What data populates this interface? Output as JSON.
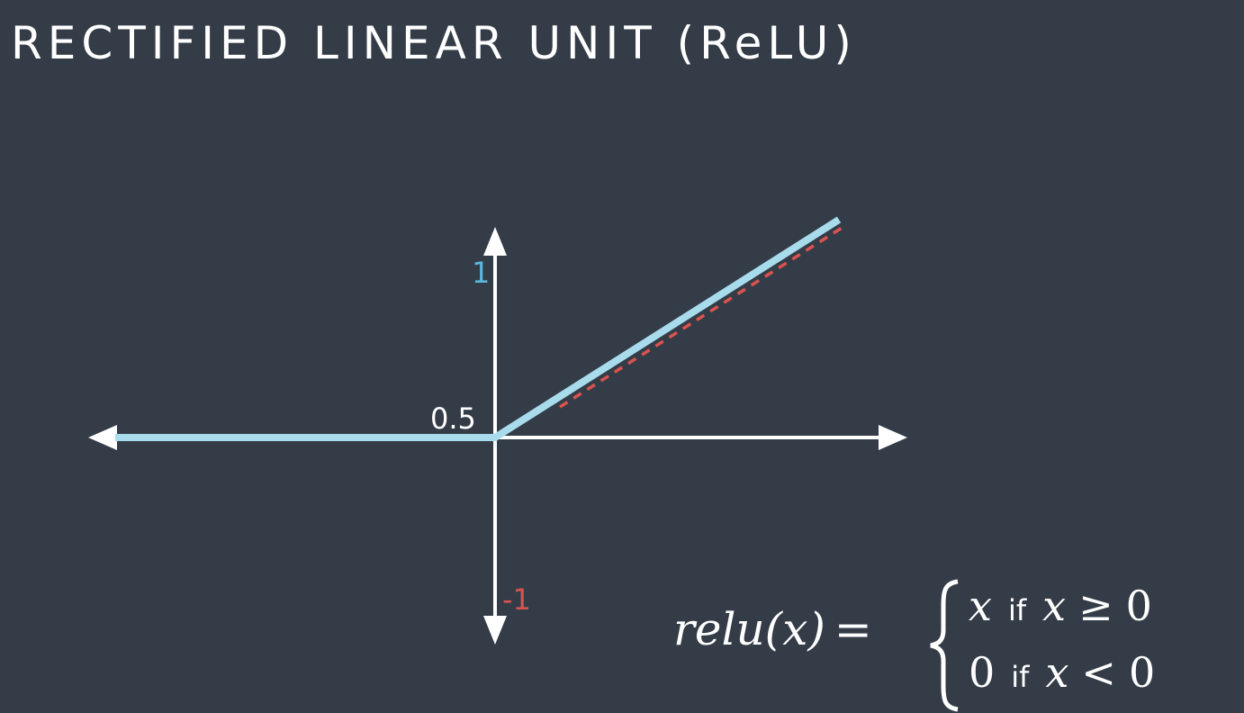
{
  "title": "RECTIFIED LINEAR UNIT (ReLU)",
  "axis_labels": {
    "y_top": "1",
    "origin": "0.5",
    "y_bottom": "-1"
  },
  "colors": {
    "background": "#343c47",
    "relu_line": "#a8dcec",
    "dashed_line": "#d9534f",
    "axes": "#ffffff",
    "label_top": "#5bb8dc",
    "label_bottom": "#d9534f"
  },
  "formula": {
    "lhs": "relu(x)",
    "eq": "=",
    "case1": {
      "value": "x",
      "cond_word": "if",
      "var": "x",
      "op": "≥",
      "rhs": "0"
    },
    "case2": {
      "value": "0",
      "cond_word": "if",
      "var": "x",
      "op": "<",
      "rhs": "0"
    }
  }
}
